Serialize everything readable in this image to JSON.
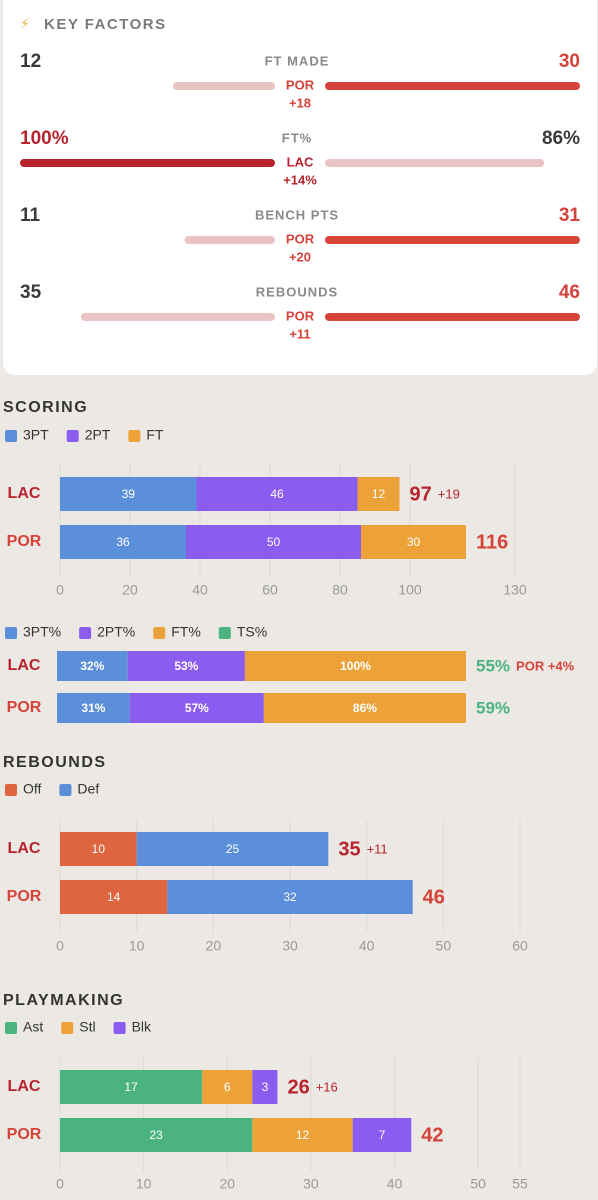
{
  "teams": [
    {
      "name": "LAC",
      "color": "#b8232e"
    },
    {
      "name": "POR",
      "color": "#d6433b"
    }
  ],
  "key_factors": {
    "icon": "⚡",
    "title": "KEY FACTORS",
    "rows": [
      {
        "label": "FT MADE",
        "left": 12,
        "right": 30,
        "leader": "POR",
        "diff": "+18"
      },
      {
        "label": "FT%",
        "left": 100,
        "left_label": "100%",
        "right": 86,
        "right_label": "86%",
        "leader": "LAC",
        "diff": "+14%"
      },
      {
        "label": "BENCH PTS",
        "left": 11,
        "right": 31,
        "leader": "POR",
        "diff": "+20"
      },
      {
        "label": "REBOUNDS",
        "left": 35,
        "right": 46,
        "leader": "POR",
        "diff": "+11"
      }
    ]
  },
  "chart_data": [
    {
      "type": "stacked_bar",
      "title": "SCORING",
      "series": [
        {
          "name": "3PT",
          "color": "#5b8fd9",
          "values": [
            39,
            36
          ]
        },
        {
          "name": "2PT",
          "color": "#8b5cf0",
          "values": [
            46,
            50
          ]
        },
        {
          "name": "FT",
          "color": "#eca238",
          "values": [
            12,
            30
          ]
        }
      ],
      "totals": [
        97,
        116
      ],
      "note": "+19",
      "xlim": [
        0,
        130
      ],
      "xticks": [
        0,
        20,
        40,
        60,
        80,
        100,
        130
      ]
    },
    {
      "type": "percent_bar",
      "series": [
        {
          "name": "3PT%",
          "color": "#5b8fd9",
          "values": [
            32,
            31
          ],
          "value_labels": [
            "32%",
            "31%"
          ]
        },
        {
          "name": "2PT%",
          "color": "#8b5cf0",
          "values": [
            53,
            57
          ],
          "value_labels": [
            "53%",
            "57%"
          ]
        },
        {
          "name": "FT%",
          "color": "#eca238",
          "values": [
            100,
            86
          ],
          "value_labels": [
            "100%",
            "86%"
          ]
        }
      ],
      "summary": {
        "name": "TS%",
        "color": "#4bb37f",
        "values": [
          55,
          59
        ],
        "value_labels": [
          "55%",
          "59%"
        ]
      },
      "note": "POR +4%"
    },
    {
      "type": "stacked_bar",
      "title": "REBOUNDS",
      "series": [
        {
          "name": "Off",
          "color": "#df6440",
          "values": [
            10,
            14
          ]
        },
        {
          "name": "Def",
          "color": "#5b8fd9",
          "values": [
            25,
            32
          ]
        }
      ],
      "totals": [
        35,
        46
      ],
      "note": "+11",
      "xlim": [
        0,
        60
      ],
      "xticks": [
        0,
        10,
        20,
        30,
        40,
        50,
        60
      ]
    },
    {
      "type": "stacked_bar",
      "title": "PLAYMAKING",
      "series": [
        {
          "name": "Ast",
          "color": "#4bb37f",
          "values": [
            17,
            23
          ]
        },
        {
          "name": "Stl",
          "color": "#eca238",
          "values": [
            6,
            12
          ]
        },
        {
          "name": "Blk",
          "color": "#8b5cf0",
          "values": [
            3,
            7
          ]
        }
      ],
      "totals": [
        26,
        42
      ],
      "note": "+16",
      "xlim": [
        0,
        55
      ],
      "xticks": [
        0,
        10,
        20,
        30,
        40,
        50,
        55
      ]
    }
  ]
}
